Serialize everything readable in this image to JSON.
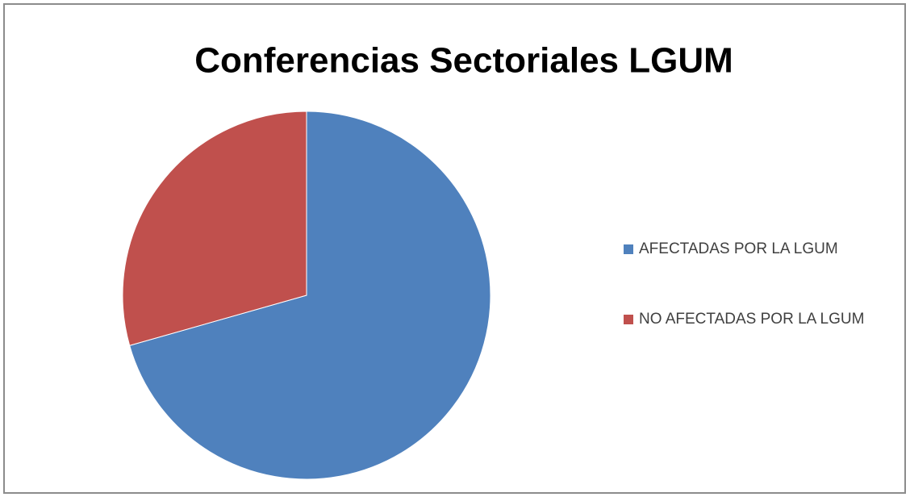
{
  "chart_data": {
    "type": "pie",
    "title": "Conferencias Sectoriales LGUM",
    "categories": [
      "AFECTADAS POR LA LGUM",
      "NO AFECTADAS POR LA LGUM"
    ],
    "values": [
      70.6,
      29.4
    ],
    "colors": [
      "#4f81bd",
      "#c0504d"
    ]
  }
}
